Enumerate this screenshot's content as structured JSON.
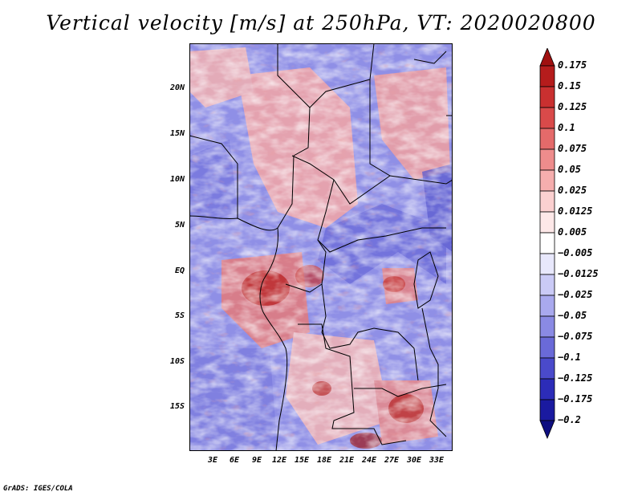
{
  "title": "Vertical velocity [m/s] at 250hPa, VT: 2020020800",
  "credit": "GrADS: IGES/COLA",
  "lat_labels": [
    "20N",
    "15N",
    "10N",
    "5N",
    "EQ",
    "5S",
    "10S",
    "15S"
  ],
  "lon_labels": [
    "3E",
    "6E",
    "9E",
    "12E",
    "15E",
    "18E",
    "21E",
    "24E",
    "27E",
    "30E",
    "33E"
  ],
  "colorbar": {
    "labels": [
      "0.175",
      "0.15",
      "0.125",
      "0.1",
      "0.075",
      "0.05",
      "0.025",
      "0.0125",
      "0.005",
      "−0.005",
      "−0.0125",
      "−0.025",
      "−0.05",
      "−0.075",
      "−0.1",
      "−0.125",
      "−0.175",
      "−0.2"
    ],
    "colors": [
      "#a01010",
      "#b51c1c",
      "#c93030",
      "#d94a4a",
      "#e46a6a",
      "#ee8c8c",
      "#f5aeae",
      "#fbd0d0",
      "#fde8e8",
      "#ffffff",
      "#e8e8fc",
      "#cacaf6",
      "#a9a9ee",
      "#8a8ae4",
      "#6a6ad8",
      "#4a4acb",
      "#2c2cb8",
      "#1a1aa0",
      "#0e0e80"
    ]
  }
}
